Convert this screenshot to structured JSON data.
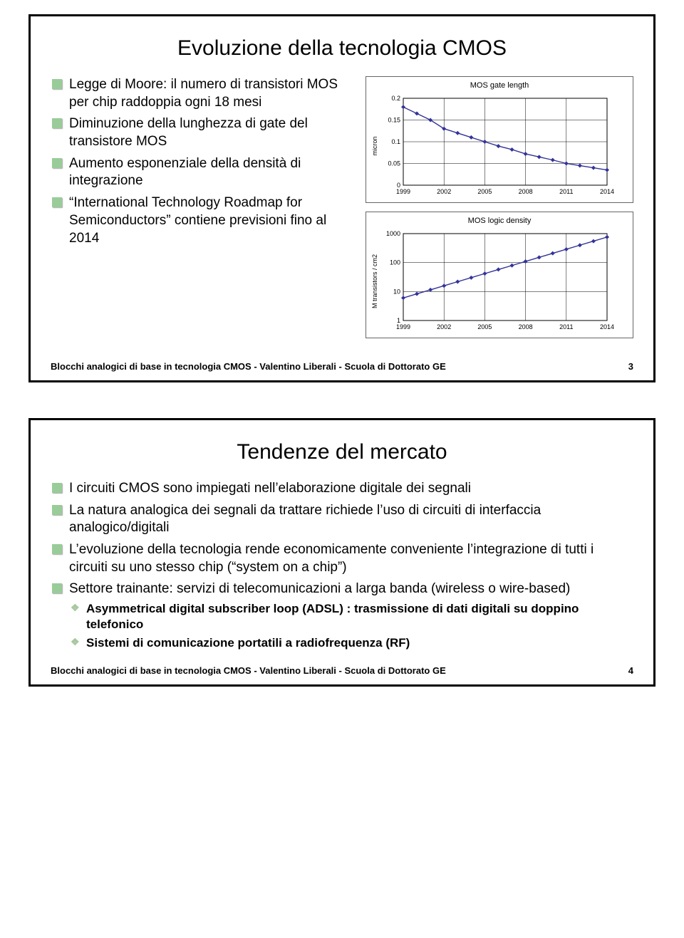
{
  "footer_text": "Blocchi analogici di base in tecnologia CMOS  -  Valentino Liberali  -  Scuola di Dottorato GE",
  "slide1": {
    "title": "Evoluzione della tecnologia CMOS",
    "page": "3",
    "bullets": {
      "b1": "Legge di Moore: il numero di transistori MOS per chip raddoppia ogni 18 mesi",
      "b2": "Diminuzione della lunghezza di gate del transistore MOS",
      "b3": "Aumento esponenziale della densità di integrazione",
      "b4": "“International Technology Roadmap for Semiconductors” contiene previsioni fino al 2014"
    },
    "chart1": {
      "type": "line",
      "title": "MOS gate length",
      "ylabel": "micron",
      "x_ticks": [
        "1999",
        "2002",
        "2005",
        "2008",
        "2011",
        "2014"
      ],
      "y_ticks": [
        "0",
        "0.05",
        "0.1",
        "0.15",
        "0.2"
      ],
      "ylim": [
        0,
        0.2
      ],
      "xlim": [
        1999,
        2014
      ],
      "points": [
        [
          1999,
          0.18
        ],
        [
          2000,
          0.165
        ],
        [
          2001,
          0.15
        ],
        [
          2002,
          0.13
        ],
        [
          2003,
          0.12
        ],
        [
          2004,
          0.11
        ],
        [
          2005,
          0.1
        ],
        [
          2006,
          0.09
        ],
        [
          2007,
          0.082
        ],
        [
          2008,
          0.072
        ],
        [
          2009,
          0.065
        ],
        [
          2010,
          0.058
        ],
        [
          2011,
          0.05
        ],
        [
          2012,
          0.045
        ],
        [
          2013,
          0.04
        ],
        [
          2014,
          0.035
        ]
      ],
      "line_color": "#333399",
      "marker_color": "#333399",
      "grid_color": "#000000",
      "background": "#ffffff"
    },
    "chart2": {
      "type": "line-log",
      "title": "MOS logic density",
      "ylabel": "M transistors / cm2",
      "x_ticks": [
        "1999",
        "2002",
        "2005",
        "2008",
        "2011",
        "2014"
      ],
      "y_ticks": [
        "1",
        "10",
        "100",
        "1000"
      ],
      "ylim_log": [
        0,
        3
      ],
      "xlim": [
        1999,
        2014
      ],
      "points_log": [
        [
          1999,
          0.78
        ],
        [
          2000,
          0.92
        ],
        [
          2001,
          1.06
        ],
        [
          2002,
          1.2
        ],
        [
          2003,
          1.34
        ],
        [
          2004,
          1.48
        ],
        [
          2005,
          1.62
        ],
        [
          2006,
          1.76
        ],
        [
          2007,
          1.9
        ],
        [
          2008,
          2.04
        ],
        [
          2009,
          2.18
        ],
        [
          2010,
          2.32
        ],
        [
          2011,
          2.46
        ],
        [
          2012,
          2.6
        ],
        [
          2013,
          2.74
        ],
        [
          2014,
          2.88
        ]
      ],
      "line_color": "#333399",
      "marker_color": "#333399",
      "grid_color": "#000000",
      "background": "#ffffff"
    }
  },
  "slide2": {
    "title": "Tendenze del mercato",
    "page": "4",
    "bullets": {
      "b1": "I circuiti CMOS sono impiegati nell’elaborazione digitale dei segnali",
      "b2": "La natura analogica dei segnali da trattare richiede l’uso di circuiti di interfaccia analogico/digitali",
      "b3": "L’evoluzione della tecnologia rende economicamente conveniente l’integrazione di tutti i circuiti su uno stesso chip (“system on a chip”)",
      "b4": "Settore trainante: servizi di telecomunicazioni a larga banda (wireless o wire-based)",
      "sub": {
        "s1": "Asymmetrical digital subscriber loop (ADSL) : trasmissione di dati digitali su doppino telefonico",
        "s2": "Sistemi di comunicazione portatili a radiofrequenza (RF)"
      }
    }
  }
}
